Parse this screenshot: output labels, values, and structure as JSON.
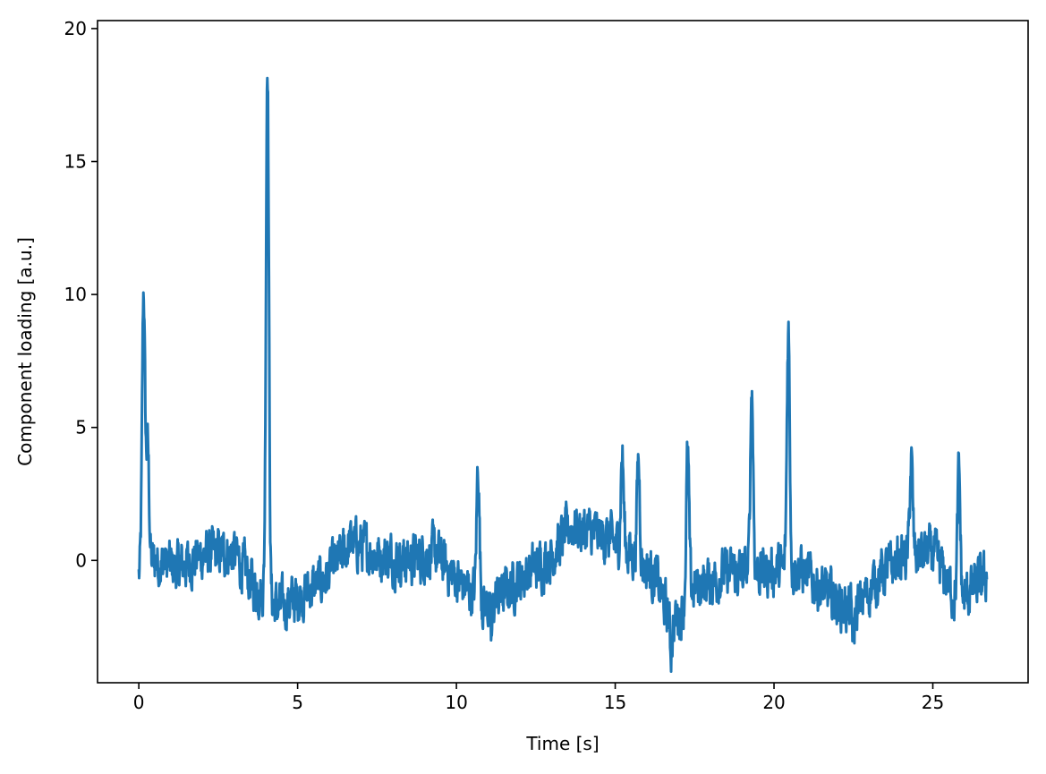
{
  "chart_data": {
    "type": "line",
    "title": "",
    "xlabel": "Time [s]",
    "ylabel": "Component loading [a.u.]",
    "xlim": [
      -1.3,
      28.0
    ],
    "ylim": [
      -4.6,
      20.3
    ],
    "x_ticks": [
      0,
      5,
      10,
      15,
      20,
      25
    ],
    "y_ticks": [
      0,
      5,
      10,
      15,
      20
    ],
    "grid": false,
    "legend": "none",
    "series": [
      {
        "color": "#1f77b4",
        "x_start": 0.0,
        "x_end": 26.7,
        "noise_amplitude": 0.9,
        "baseline_anchors": [
          [
            0.0,
            -0.6
          ],
          [
            0.5,
            0.0
          ],
          [
            1.2,
            -0.3
          ],
          [
            2.0,
            0.2
          ],
          [
            3.0,
            0.3
          ],
          [
            3.6,
            -0.9
          ],
          [
            4.4,
            -1.8
          ],
          [
            5.3,
            -1.2
          ],
          [
            6.0,
            -0.5
          ],
          [
            6.7,
            0.7
          ],
          [
            7.5,
            0.2
          ],
          [
            8.5,
            0.0
          ],
          [
            9.3,
            0.3
          ],
          [
            10.0,
            -0.7
          ],
          [
            11.0,
            -1.7
          ],
          [
            12.0,
            -0.7
          ],
          [
            13.0,
            0.2
          ],
          [
            13.6,
            1.3
          ],
          [
            14.6,
            0.9
          ],
          [
            15.5,
            0.3
          ],
          [
            16.3,
            -0.7
          ],
          [
            16.8,
            -2.5
          ],
          [
            17.5,
            -1.0
          ],
          [
            18.5,
            -0.5
          ],
          [
            19.8,
            -0.4
          ],
          [
            20.8,
            -0.3
          ],
          [
            21.5,
            -1.1
          ],
          [
            22.5,
            -2.0
          ],
          [
            23.3,
            -0.6
          ],
          [
            24.0,
            0.1
          ],
          [
            25.0,
            0.3
          ],
          [
            25.8,
            -1.6
          ],
          [
            26.7,
            -0.6
          ]
        ],
        "peaks": [
          [
            0.15,
            10.1
          ],
          [
            0.28,
            4.2
          ],
          [
            4.05,
            19.0
          ],
          [
            10.68,
            3.6
          ],
          [
            15.22,
            4.0
          ],
          [
            15.73,
            3.8
          ],
          [
            17.28,
            4.0
          ],
          [
            19.3,
            6.5
          ],
          [
            20.45,
            8.8
          ],
          [
            24.32,
            3.8
          ],
          [
            25.82,
            3.3
          ]
        ],
        "dips": [
          [
            11.1,
            -3.3
          ],
          [
            16.75,
            -3.5
          ],
          [
            22.5,
            -3.2
          ]
        ]
      }
    ]
  }
}
